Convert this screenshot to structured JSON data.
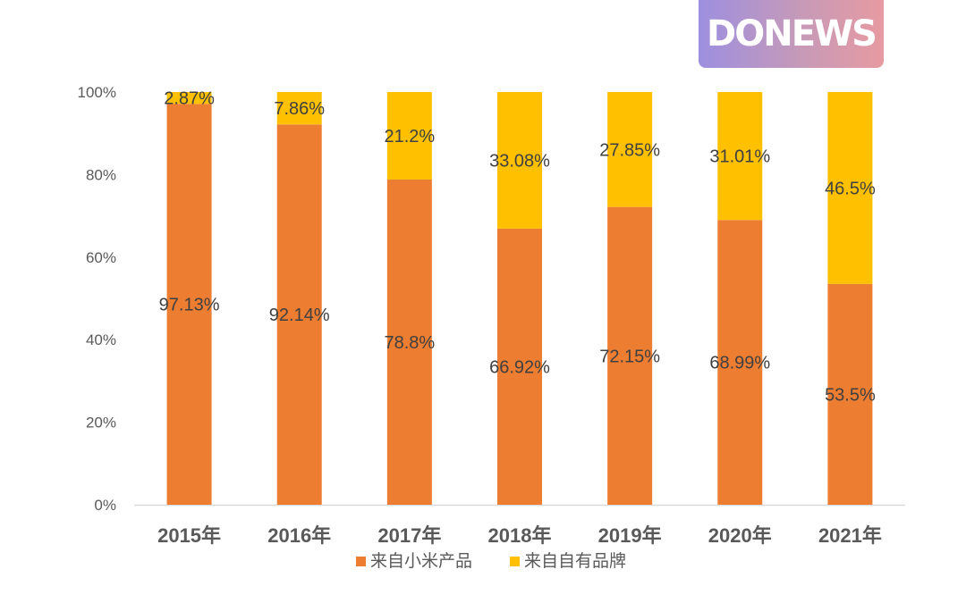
{
  "brand": {
    "logo_text": "DONEWS"
  },
  "colors": {
    "series_1": "#ED7D31",
    "series_2": "#FFC000",
    "axis_text": "#595959",
    "value_text": "#404040",
    "axis_line": "#d9d9d9"
  },
  "chart_data": {
    "type": "bar",
    "stacked": true,
    "title": "",
    "xlabel": "",
    "ylabel": "",
    "ylim": [
      0,
      100
    ],
    "y_ticks": [
      "0%",
      "20%",
      "40%",
      "60%",
      "80%",
      "100%"
    ],
    "categories": [
      "2015年",
      "2016年",
      "2017年",
      "2018年",
      "2019年",
      "2020年",
      "2021年"
    ],
    "series": [
      {
        "name": "来自小米产品",
        "values": [
          97.13,
          92.14,
          78.8,
          66.92,
          72.15,
          68.99,
          53.5
        ],
        "labels": [
          "97.13%",
          "92.14%",
          "78.8%",
          "66.92%",
          "72.15%",
          "68.99%",
          "53.5%"
        ]
      },
      {
        "name": "来自自有品牌",
        "values": [
          2.87,
          7.86,
          21.2,
          33.08,
          27.85,
          31.01,
          46.5
        ],
        "labels": [
          "2.87%",
          "7.86%",
          "21.2%",
          "33.08%",
          "27.85%",
          "31.01%",
          "46.5%"
        ]
      }
    ],
    "legend_position": "bottom",
    "grid": false
  }
}
